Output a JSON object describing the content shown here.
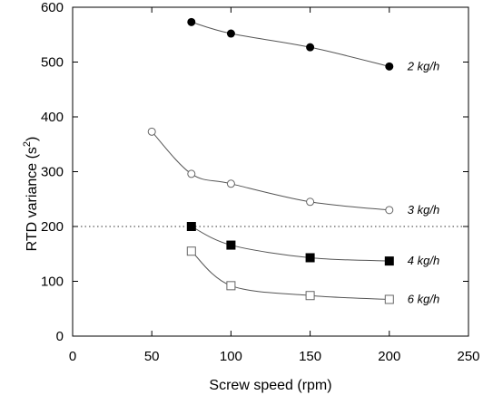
{
  "chart_data": {
    "type": "scatter",
    "xlabel": "Screw speed (rpm)",
    "ylabel_main": "RTD variance (s",
    "ylabel_sup": "2",
    "ylabel_close": ")",
    "xlim": [
      0,
      250
    ],
    "ylim": [
      0,
      600
    ],
    "xticks": [
      0,
      50,
      100,
      150,
      200,
      250
    ],
    "yticks": [
      0,
      100,
      200,
      300,
      400,
      500,
      600
    ],
    "grid": false,
    "reference_line": {
      "y": 200,
      "style": "dotted"
    },
    "series": [
      {
        "name": "2 kg/h",
        "marker": "filled-circle",
        "x": [
          75,
          100,
          150,
          200
        ],
        "y": [
          573,
          552,
          527,
          492
        ]
      },
      {
        "name": "3 kg/h",
        "marker": "open-circle",
        "x": [
          50,
          75,
          100,
          150,
          200
        ],
        "y": [
          373,
          296,
          278,
          245,
          230
        ]
      },
      {
        "name": "4 kg/h",
        "marker": "filled-square",
        "x": [
          75,
          100,
          150,
          200
        ],
        "y": [
          200,
          166,
          143,
          137
        ]
      },
      {
        "name": "6 kg/h",
        "marker": "open-square",
        "x": [
          75,
          100,
          150,
          200
        ],
        "y": [
          155,
          92,
          74,
          67
        ]
      }
    ]
  },
  "colors": {
    "marker": "#000000",
    "curve": "#555555",
    "axis": "#000000"
  }
}
